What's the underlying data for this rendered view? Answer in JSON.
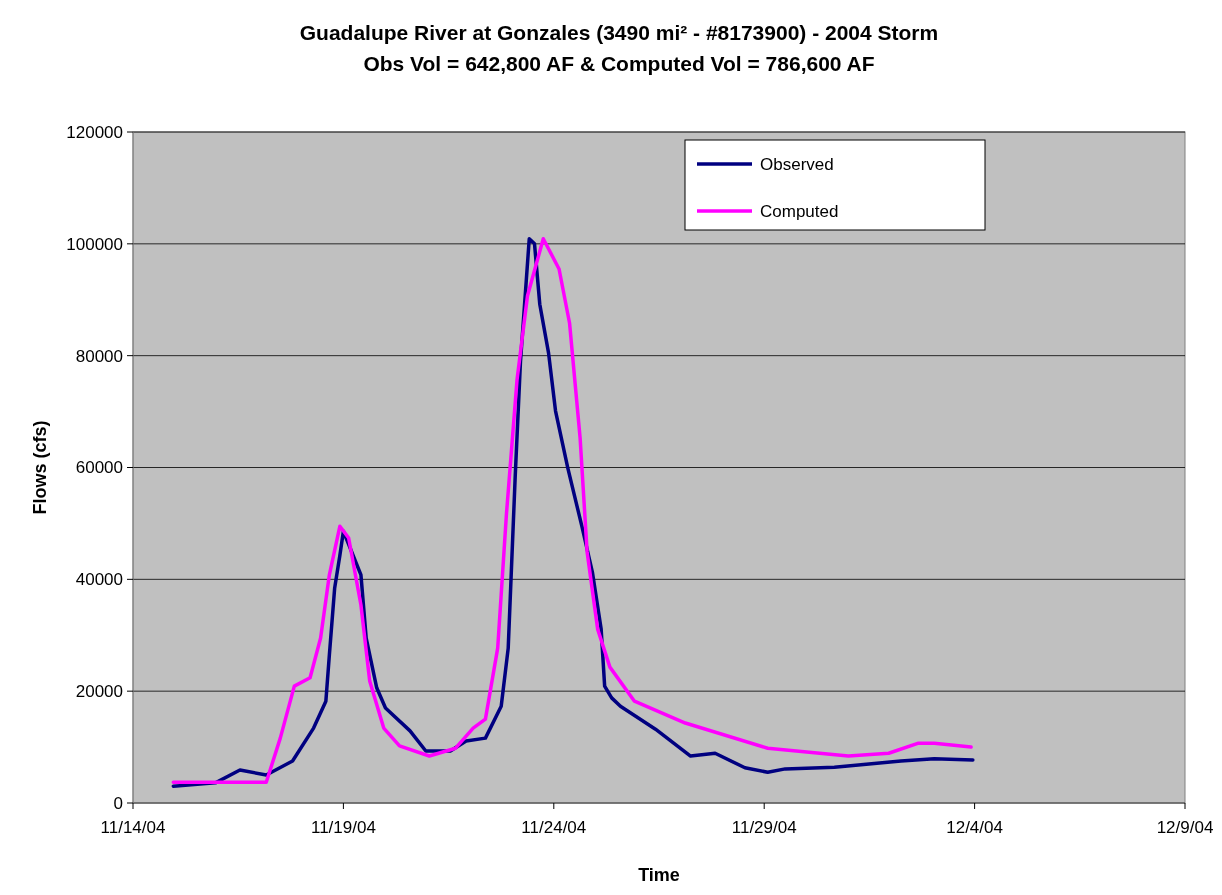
{
  "chart_data": {
    "type": "line",
    "title": "Guadalupe River at Gonzales (3490 mi² - #8173900) - 2004 Storm",
    "subtitle": "Obs Vol = 642,800 AF & Computed Vol = 786,600 AF",
    "xlabel": "Time",
    "ylabel": "Flows (cfs)",
    "xlim": [
      "2004-11-14",
      "2004-12-09"
    ],
    "xticks": [
      {
        "value": "2004-11-14",
        "label": "11/14/04"
      },
      {
        "value": "2004-11-19",
        "label": "11/19/04"
      },
      {
        "value": "2004-11-24",
        "label": "11/24/04"
      },
      {
        "value": "2004-11-29",
        "label": "11/29/04"
      },
      {
        "value": "2004-12-04",
        "label": "12/4/04"
      },
      {
        "value": "2004-12-09",
        "label": "12/9/04"
      }
    ],
    "ylim": [
      0,
      120000
    ],
    "yticks": [
      0,
      20000,
      40000,
      60000,
      80000,
      100000,
      120000
    ],
    "grid": "y",
    "legend": "top right",
    "marker": "none",
    "line_style": "solid",
    "series": [
      {
        "name": "Observed",
        "color": "#000080",
        "x": [
          "2004-11-14T23:00",
          "2004-11-15T23:00",
          "2004-11-16T13:00",
          "2004-11-17T04:00",
          "2004-11-17T19:00",
          "2004-11-18T07:00",
          "2004-11-18T14:00",
          "2004-11-18T16:00",
          "2004-11-18T19:00",
          "2004-11-18T22:00",
          "2004-11-19T00:00",
          "2004-11-19T10:00",
          "2004-11-19T13:00",
          "2004-11-19T19:00",
          "2004-11-20T00:00",
          "2004-11-20T14:00",
          "2004-11-20T23:00",
          "2004-11-21T13:00",
          "2004-11-21T22:00",
          "2004-11-22T09:00",
          "2004-11-22T18:00",
          "2004-11-22T22:00",
          "2004-11-23T02:00",
          "2004-11-23T05:00",
          "2004-11-23T10:00",
          "2004-11-23T13:00",
          "2004-11-23T16:00",
          "2004-11-23T21:00",
          "2004-11-24T01:00",
          "2004-11-24T08:00",
          "2004-11-24T16:00",
          "2004-11-24T22:00",
          "2004-11-25T03:00",
          "2004-11-25T05:00",
          "2004-11-25T09:00",
          "2004-11-25T14:00",
          "2004-11-26T10:00",
          "2004-11-27T06:00",
          "2004-11-27T20:00",
          "2004-11-28T13:00",
          "2004-11-29T02:00",
          "2004-11-29T12:00",
          "2004-11-30T16:00",
          "2004-12-02T06:00",
          "2004-12-03T01:00",
          "2004-12-03T23:00"
        ],
        "values": [
          3000,
          3600,
          5900,
          5000,
          7500,
          13400,
          18200,
          26500,
          38400,
          44300,
          48600,
          40800,
          29500,
          20600,
          17000,
          12900,
          9300,
          9300,
          11100,
          11600,
          17300,
          27700,
          58500,
          79000,
          100900,
          100000,
          89200,
          80500,
          70100,
          59900,
          49500,
          41300,
          31100,
          20900,
          18800,
          17300,
          13200,
          8400,
          8900,
          6300,
          5500,
          6100,
          6400,
          7500,
          7900,
          7700
        ]
      },
      {
        "name": "Computed",
        "color": "#ff00ff",
        "x": [
          "2004-11-14T23:00",
          "2004-11-17T04:00",
          "2004-11-17T12:00",
          "2004-11-17T20:00",
          "2004-11-18T05:00",
          "2004-11-18T11:00",
          "2004-11-18T16:00",
          "2004-11-18T22:00",
          "2004-11-19T03:00",
          "2004-11-19T10:00",
          "2004-11-19T15:00",
          "2004-11-19T23:00",
          "2004-11-20T08:00",
          "2004-11-21T01:00",
          "2004-11-21T16:00",
          "2004-11-22T02:00",
          "2004-11-22T09:00",
          "2004-11-22T16:00",
          "2004-11-22T21:00",
          "2004-11-23T03:00",
          "2004-11-23T09:00",
          "2004-11-23T18:00",
          "2004-11-24T03:00",
          "2004-11-24T09:00",
          "2004-11-24T15:00",
          "2004-11-24T19:00",
          "2004-11-25T01:00",
          "2004-11-25T08:00",
          "2004-11-25T22:00",
          "2004-11-27T03:00",
          "2004-11-29T02:00",
          "2004-12-01T00:00",
          "2004-12-01T23:00",
          "2004-12-02T16:00",
          "2004-12-03T01:00",
          "2004-12-03T22:00"
        ],
        "values": [
          3700,
          3700,
          11600,
          20900,
          22400,
          29500,
          40800,
          49500,
          47400,
          35400,
          21800,
          13400,
          10200,
          8400,
          9800,
          13400,
          15000,
          27700,
          51700,
          75600,
          90700,
          100900,
          95500,
          85800,
          65300,
          44900,
          31100,
          24300,
          18200,
          14300,
          9800,
          8400,
          8900,
          10700,
          10700,
          10000
        ]
      }
    ]
  }
}
